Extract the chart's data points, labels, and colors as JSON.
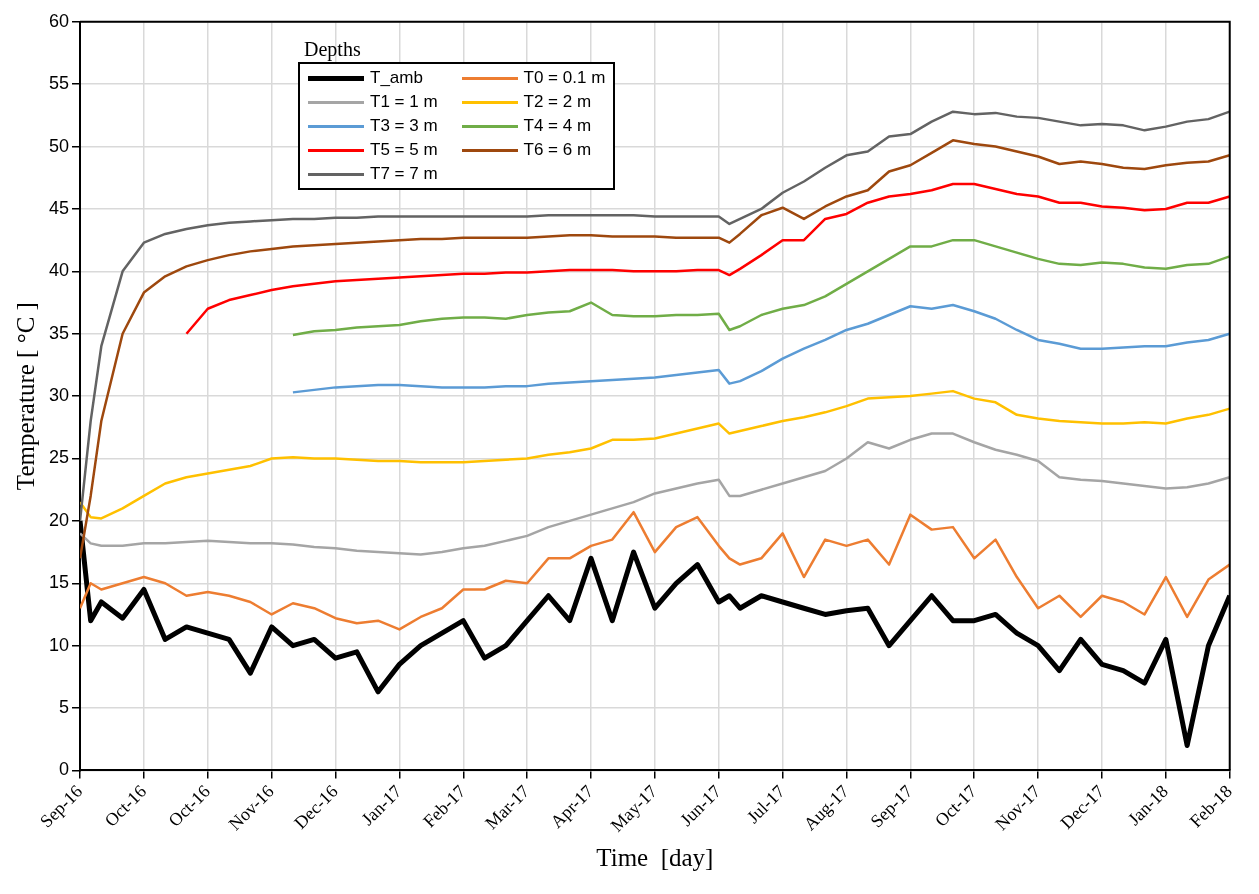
{
  "chart_data": {
    "type": "line",
    "xlabel": "Time  [day]",
    "ylabel": "Temperature [ °C ]",
    "legend_title": "Depths",
    "legend": "top left",
    "grid": true,
    "marker": "none",
    "line_style": "solid",
    "xlim": [
      "2016-09-01",
      "2018-02-23"
    ],
    "ylim": [
      0,
      60
    ],
    "yticks": [
      0,
      5,
      10,
      15,
      20,
      25,
      30,
      35,
      40,
      45,
      50,
      55,
      60
    ],
    "xticks": [
      {
        "value": "2016-09-01",
        "label": "Sep-16"
      },
      {
        "value": "2016-10-01",
        "label": "Oct-16"
      },
      {
        "value": "2016-10-31",
        "label": "Oct-16"
      },
      {
        "value": "2016-11-30",
        "label": "Nov-16"
      },
      {
        "value": "2016-12-30",
        "label": "Dec-16"
      },
      {
        "value": "2017-01-29",
        "label": "Jan-17"
      },
      {
        "value": "2017-02-28",
        "label": "Feb-17"
      },
      {
        "value": "2017-03-30",
        "label": "Mar-17"
      },
      {
        "value": "2017-04-29",
        "label": "Apr-17"
      },
      {
        "value": "2017-05-29",
        "label": "May-17"
      },
      {
        "value": "2017-06-28",
        "label": "Jun-17"
      },
      {
        "value": "2017-07-28",
        "label": "Jul-17"
      },
      {
        "value": "2017-08-27",
        "label": "Aug-17"
      },
      {
        "value": "2017-09-26",
        "label": "Sep-17"
      },
      {
        "value": "2017-10-26",
        "label": "Oct-17"
      },
      {
        "value": "2017-11-25",
        "label": "Nov-17"
      },
      {
        "value": "2017-12-25",
        "label": "Dec-17"
      },
      {
        "value": "2018-01-24",
        "label": "Jan-18"
      },
      {
        "value": "2018-02-23",
        "label": "Feb-18"
      }
    ],
    "x": [
      "2016-09-01",
      "2016-09-06",
      "2016-09-11",
      "2016-09-21",
      "2016-10-01",
      "2016-10-11",
      "2016-10-21",
      "2016-10-31",
      "2016-11-10",
      "2016-11-20",
      "2016-11-30",
      "2016-12-10",
      "2016-12-20",
      "2016-12-30",
      "2017-01-09",
      "2017-01-19",
      "2017-01-29",
      "2017-02-08",
      "2017-02-18",
      "2017-02-28",
      "2017-03-10",
      "2017-03-20",
      "2017-03-30",
      "2017-04-09",
      "2017-04-19",
      "2017-04-29",
      "2017-05-09",
      "2017-05-19",
      "2017-05-29",
      "2017-06-08",
      "2017-06-18",
      "2017-06-28",
      "2017-07-03",
      "2017-07-08",
      "2017-07-18",
      "2017-07-28",
      "2017-08-07",
      "2017-08-17",
      "2017-08-27",
      "2017-09-06",
      "2017-09-16",
      "2017-09-26",
      "2017-10-06",
      "2017-10-16",
      "2017-10-26",
      "2017-11-05",
      "2017-11-15",
      "2017-11-25",
      "2017-12-05",
      "2017-12-15",
      "2017-12-25",
      "2018-01-04",
      "2018-01-14",
      "2018-01-24",
      "2018-02-03",
      "2018-02-13",
      "2018-02-23"
    ],
    "series": [
      {
        "name": "T_amb",
        "color": "#000000",
        "values": [
          20,
          12,
          13.5,
          12.2,
          14.5,
          10.5,
          11.5,
          11,
          10.5,
          7.8,
          11.5,
          10,
          10.5,
          9,
          9.5,
          6.3,
          8.5,
          10,
          11,
          12,
          9,
          10,
          12,
          14,
          12,
          17,
          12,
          17.5,
          13,
          15,
          16.5,
          13.5,
          14,
          13,
          14,
          13.5,
          13,
          12.5,
          12.8,
          13,
          10,
          12,
          14,
          12,
          12,
          12.5,
          11,
          10,
          8,
          10.5,
          8.5,
          8,
          7,
          10.5,
          2,
          10,
          14
        ]
      },
      {
        "name": "T0 = 0.1 m",
        "color": "#ed7d31",
        "values": [
          13,
          15,
          14.5,
          15,
          15.5,
          15,
          14,
          14.3,
          14,
          13.5,
          12.5,
          13.4,
          13,
          12.2,
          11.8,
          12,
          11.3,
          12.3,
          13,
          14.5,
          14.5,
          15.2,
          15,
          17,
          17,
          18,
          18.5,
          20.7,
          17.5,
          19.5,
          20.3,
          18,
          17,
          16.5,
          17,
          19,
          15.5,
          18.5,
          18,
          18.5,
          16.5,
          20.5,
          19.3,
          19.5,
          17,
          18.5,
          15.5,
          13,
          14,
          12.3,
          14,
          13.5,
          12.5,
          15.5,
          12.3,
          15.3,
          16.5
        ]
      },
      {
        "name": "T1 = 1 m",
        "color": "#a5a5a5",
        "values": [
          19,
          18.2,
          18,
          18,
          18.2,
          18.2,
          18.3,
          18.4,
          18.3,
          18.2,
          18.2,
          18.1,
          17.9,
          17.8,
          17.6,
          17.5,
          17.4,
          17.3,
          17.5,
          17.8,
          18,
          18.4,
          18.8,
          19.5,
          20,
          20.5,
          21,
          21.5,
          22.2,
          22.6,
          23,
          23.3,
          22,
          22,
          22.5,
          23,
          23.5,
          24,
          25,
          26.3,
          25.8,
          26.5,
          27,
          27,
          26.3,
          25.7,
          25.3,
          24.8,
          23.5,
          23.3,
          23.2,
          23,
          22.8,
          22.6,
          22.7,
          23,
          23.5
        ]
      },
      {
        "name": "T2 = 2 m",
        "color": "#ffc000",
        "values": [
          21.5,
          20.3,
          20.2,
          21,
          22,
          23,
          23.5,
          23.8,
          24.1,
          24.4,
          25,
          25.1,
          25,
          25,
          24.9,
          24.8,
          24.8,
          24.7,
          24.7,
          24.7,
          24.8,
          24.9,
          25,
          25.3,
          25.5,
          25.8,
          26.5,
          26.5,
          26.6,
          27,
          27.4,
          27.8,
          27,
          27.2,
          27.6,
          28,
          28.3,
          28.7,
          29.2,
          29.8,
          29.9,
          30,
          30.2,
          30.4,
          29.8,
          29.5,
          28.5,
          28.2,
          28,
          27.9,
          27.8,
          27.8,
          27.9,
          27.8,
          28.2,
          28.5,
          29
        ]
      },
      {
        "name": "T3 = 3 m",
        "color": "#5b9bd5",
        "values": [
          null,
          null,
          null,
          null,
          null,
          null,
          null,
          null,
          null,
          null,
          null,
          30.3,
          30.5,
          30.7,
          30.8,
          30.9,
          30.9,
          30.8,
          30.7,
          30.7,
          30.7,
          30.8,
          30.8,
          31,
          31.1,
          31.2,
          31.3,
          31.4,
          31.5,
          31.7,
          31.9,
          32.1,
          31,
          31.2,
          32,
          33,
          33.8,
          34.5,
          35.3,
          35.8,
          36.5,
          37.2,
          37,
          37.3,
          36.8,
          36.2,
          35.3,
          34.5,
          34.2,
          33.8,
          33.8,
          33.9,
          34,
          34,
          34.3,
          34.5,
          35
        ]
      },
      {
        "name": "T4 = 4 m",
        "color": "#70ad47",
        "values": [
          null,
          null,
          null,
          null,
          null,
          null,
          null,
          null,
          null,
          null,
          null,
          34.9,
          35.2,
          35.3,
          35.5,
          35.6,
          35.7,
          36,
          36.2,
          36.3,
          36.3,
          36.2,
          36.5,
          36.7,
          36.8,
          37.5,
          36.5,
          36.4,
          36.4,
          36.5,
          36.5,
          36.6,
          35.3,
          35.6,
          36.5,
          37,
          37.3,
          38,
          39,
          40,
          41,
          42,
          42,
          42.5,
          42.5,
          42,
          41.5,
          41,
          40.6,
          40.5,
          40.7,
          40.6,
          40.3,
          40.2,
          40.5,
          40.6,
          41.2
        ]
      },
      {
        "name": "T5 = 5 m",
        "color": "#ff0000",
        "values": [
          null,
          null,
          null,
          null,
          null,
          null,
          35,
          37,
          37.7,
          38.1,
          38.5,
          38.8,
          39,
          39.2,
          39.3,
          39.4,
          39.5,
          39.6,
          39.7,
          39.8,
          39.8,
          39.9,
          39.9,
          40,
          40.1,
          40.1,
          40.1,
          40,
          40,
          40,
          40.1,
          40.1,
          39.7,
          40.2,
          41.3,
          42.5,
          42.5,
          44.2,
          44.6,
          45.5,
          46,
          46.2,
          46.5,
          47,
          47,
          46.6,
          46.2,
          46,
          45.5,
          45.5,
          45.2,
          45.1,
          44.9,
          45,
          45.5,
          45.5,
          46
        ]
      },
      {
        "name": "T6 = 6 m",
        "color": "#9e480e",
        "values": [
          17,
          22,
          28,
          35,
          38.3,
          39.6,
          40.4,
          40.9,
          41.3,
          41.6,
          41.8,
          42,
          42.1,
          42.2,
          42.3,
          42.4,
          42.5,
          42.6,
          42.6,
          42.7,
          42.7,
          42.7,
          42.7,
          42.8,
          42.9,
          42.9,
          42.8,
          42.8,
          42.8,
          42.7,
          42.7,
          42.7,
          42.3,
          43,
          44.5,
          45.1,
          44.2,
          45.2,
          46,
          46.5,
          48,
          48.5,
          49.5,
          50.5,
          50.2,
          50,
          49.6,
          49.2,
          48.6,
          48.8,
          48.6,
          48.3,
          48.2,
          48.5,
          48.7,
          48.8,
          49.3
        ]
      },
      {
        "name": "T7 = 7 m",
        "color": "#636363",
        "values": [
          20,
          28,
          34,
          40,
          42.3,
          43,
          43.4,
          43.7,
          43.9,
          44,
          44.1,
          44.2,
          44.2,
          44.3,
          44.3,
          44.4,
          44.4,
          44.4,
          44.4,
          44.4,
          44.4,
          44.4,
          44.4,
          44.5,
          44.5,
          44.5,
          44.5,
          44.5,
          44.4,
          44.4,
          44.4,
          44.4,
          43.8,
          44.2,
          45,
          46.3,
          47.2,
          48.3,
          49.3,
          49.6,
          50.8,
          51,
          52,
          52.8,
          52.6,
          52.7,
          52.4,
          52.3,
          52,
          51.7,
          51.8,
          51.7,
          51.3,
          51.6,
          52,
          52.2,
          52.8
        ]
      }
    ]
  }
}
